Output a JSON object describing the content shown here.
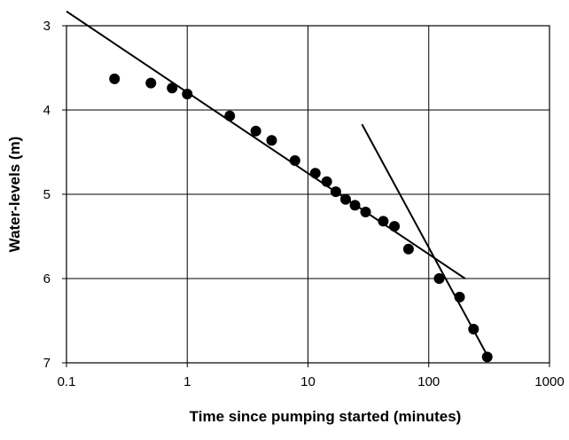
{
  "chart_data": {
    "type": "scatter",
    "title": "",
    "xlabel": "Time since pumping started (minutes)",
    "ylabel": "Water-levels (m)",
    "x_scale": "log",
    "xlim": [
      0.1,
      1000
    ],
    "ylim": [
      3,
      7
    ],
    "y_inverted": true,
    "grid": true,
    "legend": "none",
    "x_ticks": [
      {
        "value": 0.1,
        "label": "0.1"
      },
      {
        "value": 1,
        "label": "1"
      },
      {
        "value": 10,
        "label": "10"
      },
      {
        "value": 100,
        "label": "100"
      },
      {
        "value": 1000,
        "label": "1000"
      }
    ],
    "y_ticks": [
      {
        "value": 3,
        "label": "3"
      },
      {
        "value": 4,
        "label": "4"
      },
      {
        "value": 5,
        "label": "5"
      },
      {
        "value": 6,
        "label": "6"
      },
      {
        "value": 7,
        "label": "7"
      }
    ],
    "points": [
      {
        "x": 0.25,
        "y": 3.63
      },
      {
        "x": 0.5,
        "y": 3.68
      },
      {
        "x": 0.75,
        "y": 3.74
      },
      {
        "x": 1,
        "y": 3.81
      },
      {
        "x": 2.25,
        "y": 4.07
      },
      {
        "x": 3.7,
        "y": 4.25
      },
      {
        "x": 5,
        "y": 4.36
      },
      {
        "x": 7.8,
        "y": 4.6
      },
      {
        "x": 11.5,
        "y": 4.75
      },
      {
        "x": 14.3,
        "y": 4.85
      },
      {
        "x": 17,
        "y": 4.97
      },
      {
        "x": 20.5,
        "y": 5.06
      },
      {
        "x": 24.5,
        "y": 5.13
      },
      {
        "x": 30,
        "y": 5.21
      },
      {
        "x": 42,
        "y": 5.32
      },
      {
        "x": 52,
        "y": 5.38
      },
      {
        "x": 68,
        "y": 5.65
      },
      {
        "x": 122,
        "y": 6.0
      },
      {
        "x": 180,
        "y": 6.22
      },
      {
        "x": 235,
        "y": 6.6
      },
      {
        "x": 305,
        "y": 6.93
      }
    ],
    "fit_lines": [
      {
        "x": [
          0.1,
          200
        ],
        "y": [
          2.83,
          6.0
        ]
      },
      {
        "x": [
          28,
          310
        ],
        "y": [
          4.17,
          6.93
        ]
      }
    ],
    "colors": {
      "marker": "#000000",
      "line": "#000000",
      "grid": "#000000",
      "background": "#ffffff"
    }
  }
}
